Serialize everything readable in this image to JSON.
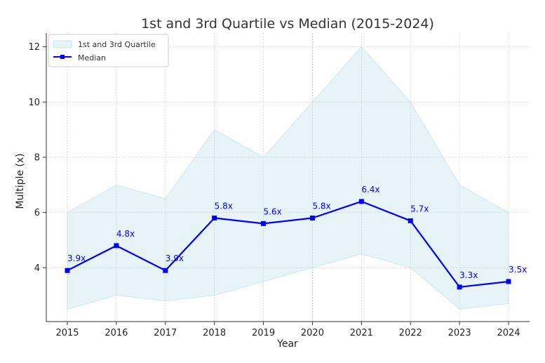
{
  "chart_data": {
    "type": "line",
    "title": "1st and 3rd Quartile vs Median (2015-2024)",
    "xlabel": "Year",
    "ylabel": "Multiple (x)",
    "categories": [
      "2015",
      "2016",
      "2017",
      "2018",
      "2019",
      "2020",
      "2021",
      "2022",
      "2023",
      "2024"
    ],
    "ylim": [
      2.05,
      12.5
    ],
    "yticks": [
      4,
      6,
      8,
      10,
      12
    ],
    "grid": true,
    "legend_position": "top-left",
    "series": [
      {
        "name": "Median",
        "type": "line",
        "color": "#0000ff",
        "marker": "square",
        "values": [
          3.9,
          4.8,
          3.9,
          5.8,
          5.6,
          5.8,
          6.4,
          5.7,
          3.3,
          3.5
        ],
        "labels": [
          "3.9x",
          "4.8x",
          "3.9x",
          "5.8x",
          "5.6x",
          "5.8x",
          "6.4x",
          "5.7x",
          "3.3x",
          "3.5x"
        ]
      }
    ],
    "band": {
      "name": "1st and 3rd Quartile",
      "color": "#add8e6",
      "lower": [
        2.5,
        3.0,
        2.8,
        3.0,
        3.5,
        4.0,
        4.5,
        4.0,
        2.5,
        2.7
      ],
      "upper": [
        6.0,
        7.0,
        6.5,
        9.0,
        8.0,
        10.0,
        12.0,
        10.0,
        7.0,
        6.0
      ]
    }
  }
}
